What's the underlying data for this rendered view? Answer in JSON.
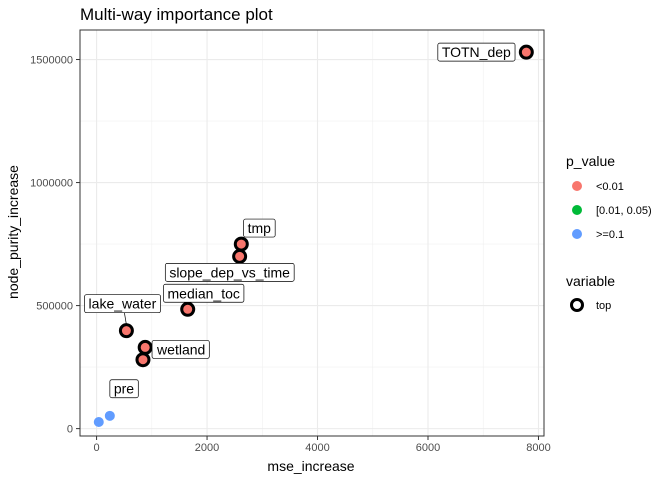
{
  "chart_data": {
    "type": "scatter",
    "title": "Multi-way importance plot",
    "xlabel": "mse_increase",
    "ylabel": "node_purity_increase",
    "xlim": [
      -300,
      8100
    ],
    "ylim": [
      -30000,
      1620000
    ],
    "x_ticks": [
      0,
      2000,
      4000,
      6000,
      8000
    ],
    "y_ticks": [
      0,
      500000,
      1000000,
      1500000
    ],
    "grid": true,
    "colors": {
      "<0.01": "#F8766D",
      "[0.01, 0.05)": "#00BA38",
      ">=0.1": "#619CFF"
    },
    "points": [
      {
        "label": "TOTN_dep",
        "x": 7780,
        "y": 1530000,
        "p_value": "<0.01",
        "top": true
      },
      {
        "label": "tmp",
        "x": 2620,
        "y": 750000,
        "p_value": "<0.01",
        "top": true
      },
      {
        "label": "slope_dep_vs_time",
        "x": 2590,
        "y": 700000,
        "p_value": "<0.01",
        "top": true
      },
      {
        "label": "median_toc",
        "x": 1650,
        "y": 485000,
        "p_value": "<0.01",
        "top": true
      },
      {
        "label": "lake_water",
        "x": 540,
        "y": 398000,
        "p_value": "<0.01",
        "top": true
      },
      {
        "label": "wetland",
        "x": 880,
        "y": 330000,
        "p_value": "<0.01",
        "top": true
      },
      {
        "label": "pre",
        "x": 840,
        "y": 280000,
        "p_value": "<0.01",
        "top": true
      },
      {
        "label": "",
        "x": 400,
        "y": 490000,
        "p_value": "<0.01",
        "top": false
      },
      {
        "label": "",
        "x": 240,
        "y": 52000,
        "p_value": ">=0.1",
        "top": false
      },
      {
        "label": "",
        "x": 40,
        "y": 27000,
        "p_value": ">=0.1",
        "top": false
      }
    ],
    "legend": {
      "placement": "right",
      "p_value": {
        "title": "p_value",
        "entries": [
          "<0.01",
          "[0.01, 0.05)",
          ">=0.1"
        ]
      },
      "variable": {
        "title": "variable",
        "entries": [
          "top"
        ]
      }
    }
  }
}
